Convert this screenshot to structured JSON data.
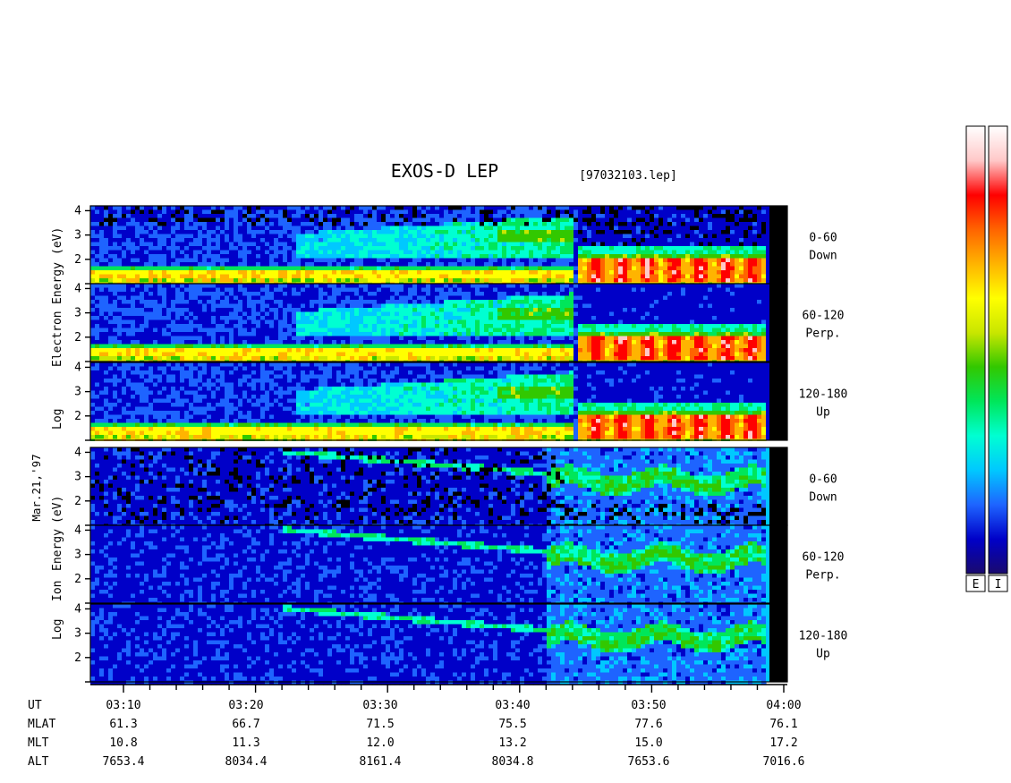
{
  "chart_data": {
    "type": "heatmap",
    "title": "EXOS-D LEP",
    "file_label": "[97032103.lep]",
    "date_label": "Mar.21,'97",
    "electron_ylabel_parts": [
      "Log",
      "Electron",
      "Energy",
      "(eV)"
    ],
    "ion_ylabel_parts": [
      "Log",
      "Ion",
      "Energy",
      "(eV)"
    ],
    "y_ticks": [
      "4",
      "3",
      "2"
    ],
    "ylim": [
      1,
      4.2
    ],
    "panels": [
      {
        "species": "electron",
        "angle": "0-60",
        "direction": "Down"
      },
      {
        "species": "electron",
        "angle": "60-120",
        "direction": "Perp."
      },
      {
        "species": "electron",
        "angle": "120-180",
        "direction": "Up"
      },
      {
        "species": "ion",
        "angle": "0-60",
        "direction": "Down"
      },
      {
        "species": "ion",
        "angle": "60-120",
        "direction": "Perp."
      },
      {
        "species": "ion",
        "angle": "120-180",
        "direction": "Up"
      }
    ],
    "x_axis": {
      "row_labels": [
        "UT",
        "MLAT",
        "MLT",
        "ALT"
      ],
      "ut": [
        "03:10",
        "03:20",
        "03:30",
        "03:40",
        "03:50",
        "04:00"
      ],
      "mlat": [
        "61.3",
        "66.7",
        "71.5",
        "75.5",
        "77.6",
        "76.1"
      ],
      "mlt": [
        "10.8",
        "11.3",
        "12.0",
        "13.2",
        "15.0",
        "17.2"
      ],
      "alt": [
        "7653.4",
        "8034.4",
        "8161.4",
        "8034.8",
        "7653.6",
        "7016.6"
      ]
    },
    "colorbars": [
      "E",
      "I"
    ],
    "colorscale": [
      "#1a0a6e",
      "#0000c8",
      "#1e64ff",
      "#00c8ff",
      "#00ffd2",
      "#00e65a",
      "#32c800",
      "#c8e600",
      "#ffff00",
      "#ffb400",
      "#ff6400",
      "#ff0000",
      "#ffc8c8",
      "#ffffff"
    ]
  }
}
